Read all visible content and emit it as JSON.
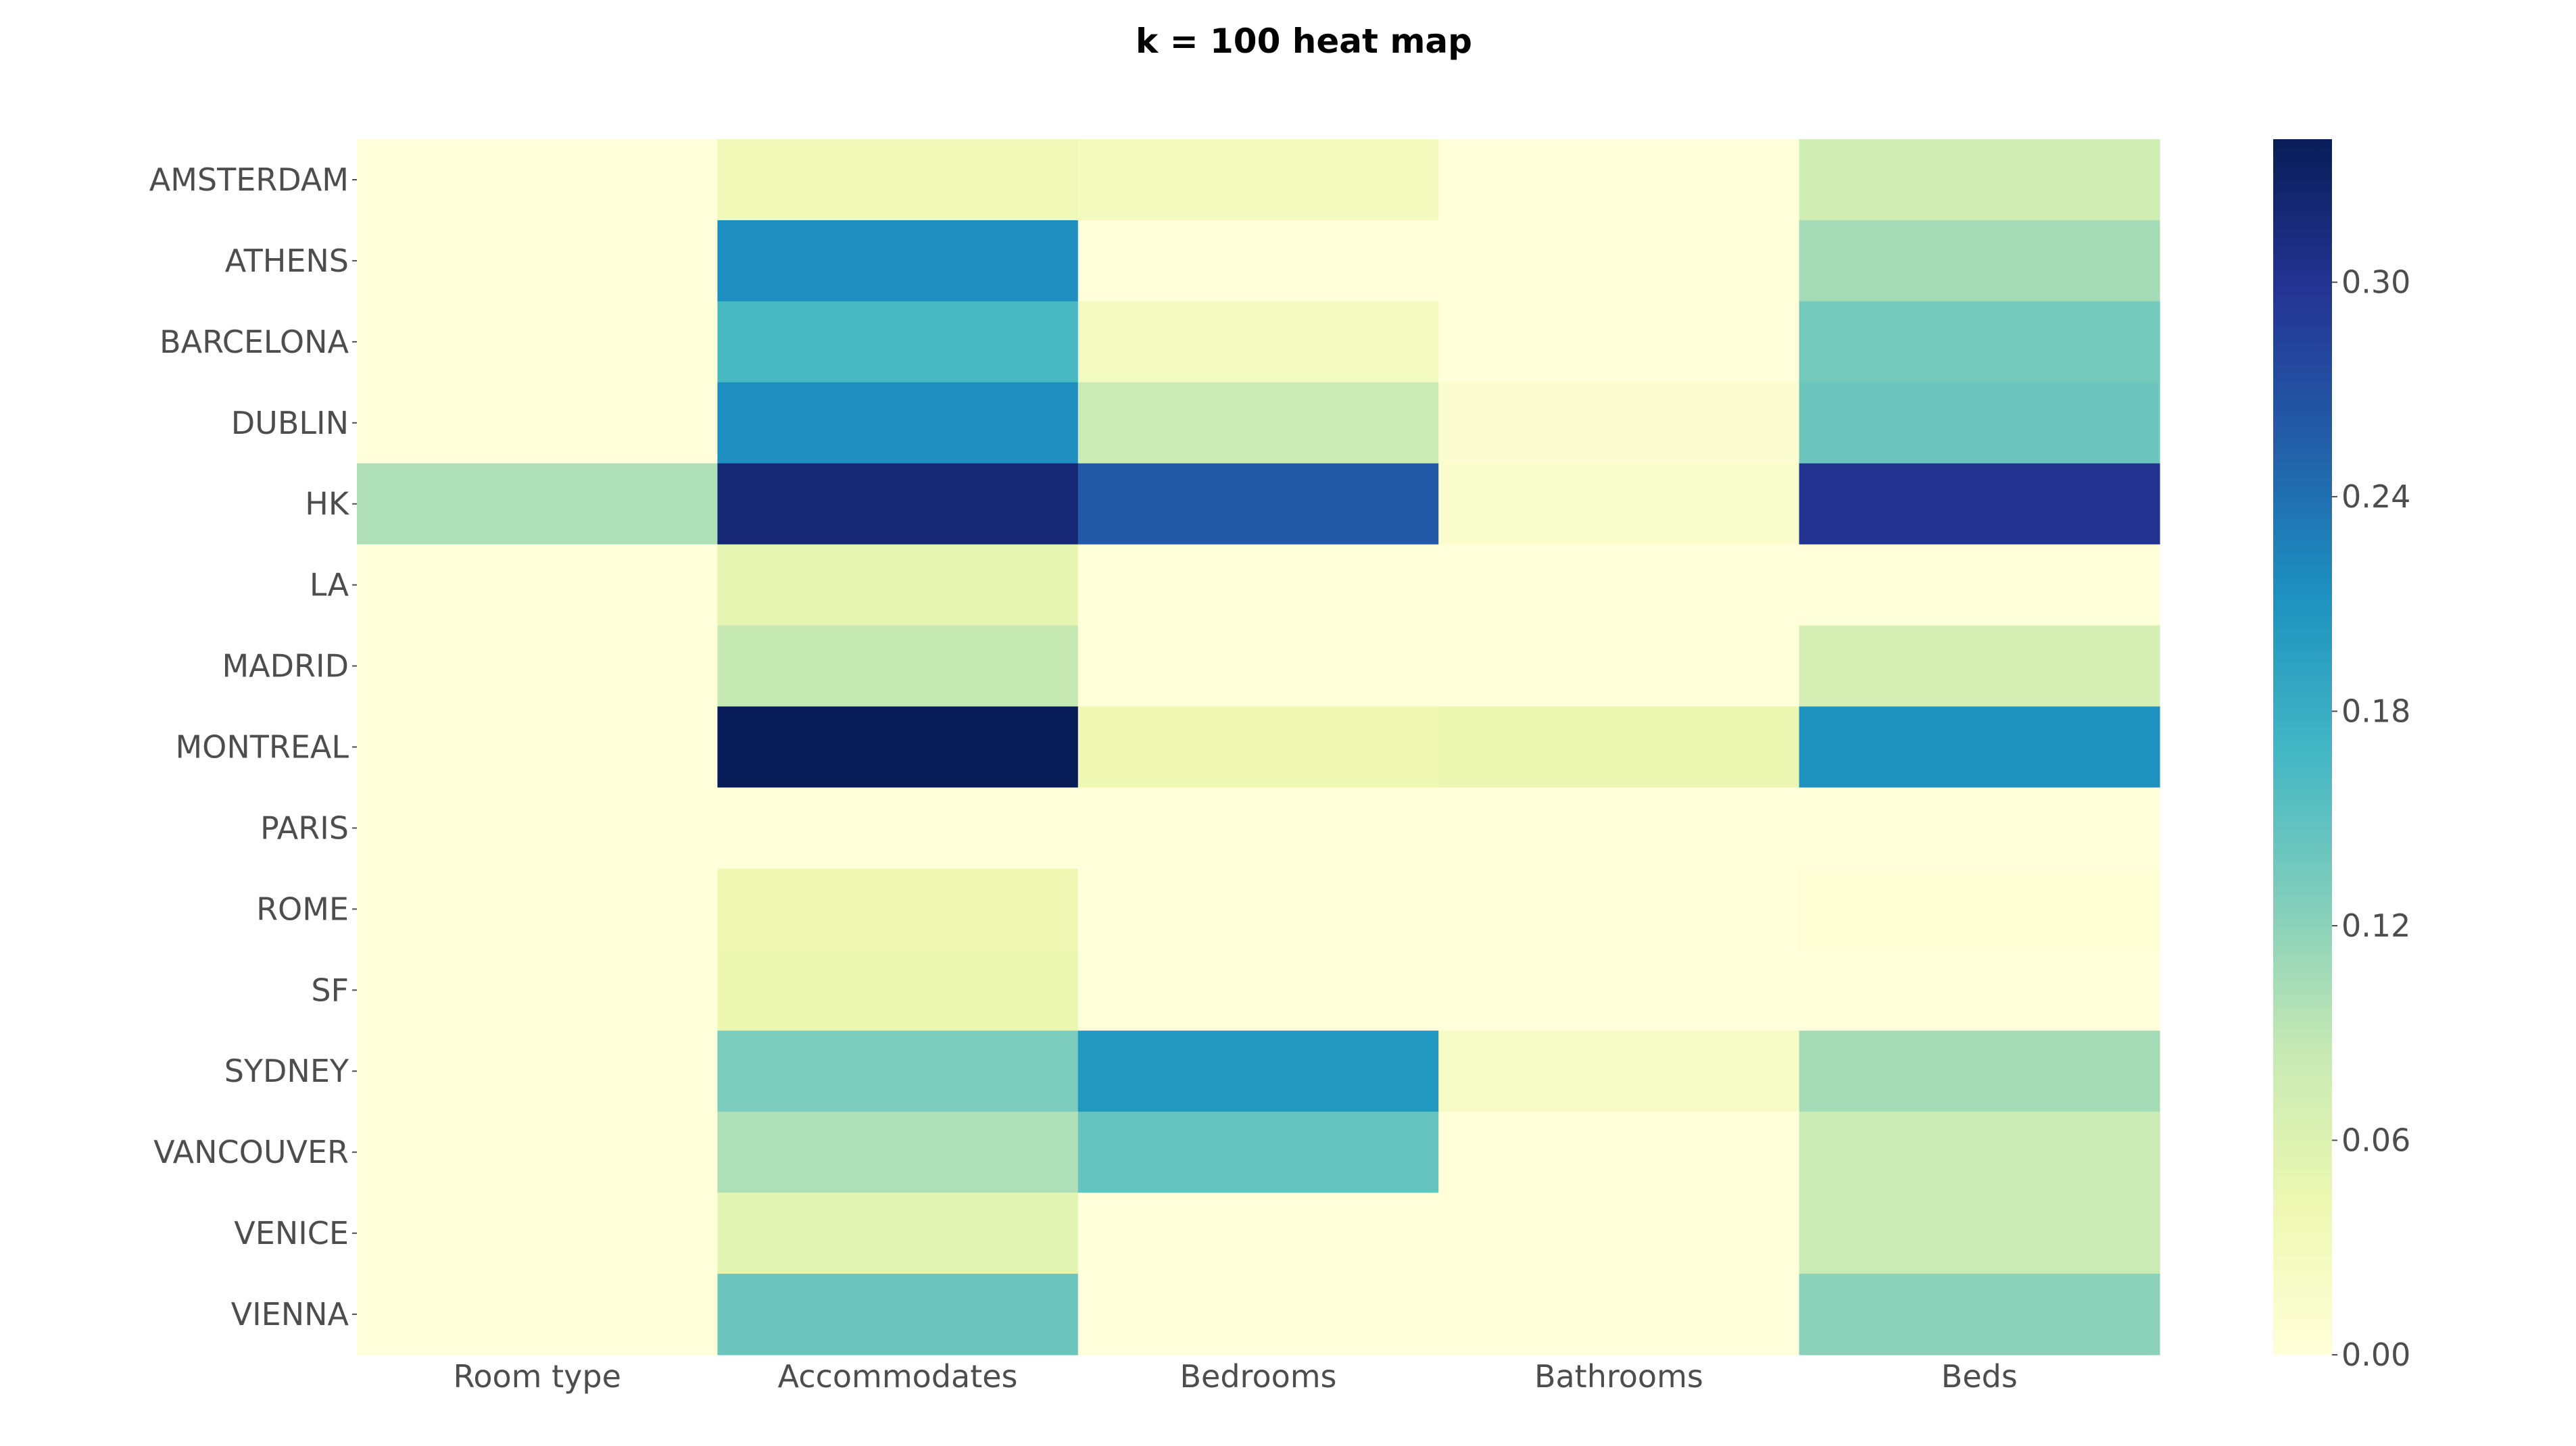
{
  "chart_data": {
    "type": "heatmap",
    "title": "k = 100 heat map",
    "x_categories": [
      "Room type",
      "Accommodates",
      "Bedrooms",
      "Bathrooms",
      "Beds"
    ],
    "y_categories": [
      "AMSTERDAM",
      "ATHENS",
      "BARCELONA",
      "DUBLIN",
      "HK",
      "LA",
      "MADRID",
      "MONTREAL",
      "PARIS",
      "ROME",
      "SF",
      "SYDNEY",
      "VANCOUVER",
      "VENICE",
      "VIENNA"
    ],
    "values": [
      [
        0.0,
        0.035,
        0.03,
        0.0,
        0.075
      ],
      [
        0.0,
        0.215,
        0.0,
        0.0,
        0.105
      ],
      [
        0.0,
        0.165,
        0.025,
        0.0,
        0.135
      ],
      [
        0.0,
        0.215,
        0.08,
        0.01,
        0.14
      ],
      [
        0.1,
        0.32,
        0.26,
        0.015,
        0.3
      ],
      [
        0.0,
        0.05,
        0.0,
        0.0,
        0.0
      ],
      [
        0.0,
        0.085,
        0.0,
        0.0,
        0.07
      ],
      [
        0.0,
        0.34,
        0.04,
        0.045,
        0.21
      ],
      [
        0.0,
        0.0,
        0.0,
        0.0,
        0.0
      ],
      [
        0.0,
        0.04,
        0.0,
        0.0,
        0.005
      ],
      [
        0.0,
        0.045,
        0.0,
        0.0,
        0.0
      ],
      [
        0.0,
        0.13,
        0.205,
        0.02,
        0.105
      ],
      [
        0.0,
        0.1,
        0.145,
        0.0,
        0.08
      ],
      [
        0.0,
        0.055,
        0.0,
        0.0,
        0.08
      ],
      [
        0.0,
        0.14,
        0.0,
        0.0,
        0.12
      ]
    ],
    "colorbar": {
      "min": 0.0,
      "max": 0.34,
      "ticks": [
        0.0,
        0.06,
        0.12,
        0.18,
        0.24,
        0.3
      ],
      "tick_labels": [
        "0.00",
        "0.06",
        "0.12",
        "0.18",
        "0.24",
        "0.30"
      ]
    },
    "colormap": "YlGnBu",
    "colormap_stops": [
      "#ffffd9",
      "#edf8b1",
      "#c7e9b4",
      "#7fcdbb",
      "#41b6c4",
      "#1d91c0",
      "#225ea8",
      "#253494",
      "#081d58"
    ]
  }
}
